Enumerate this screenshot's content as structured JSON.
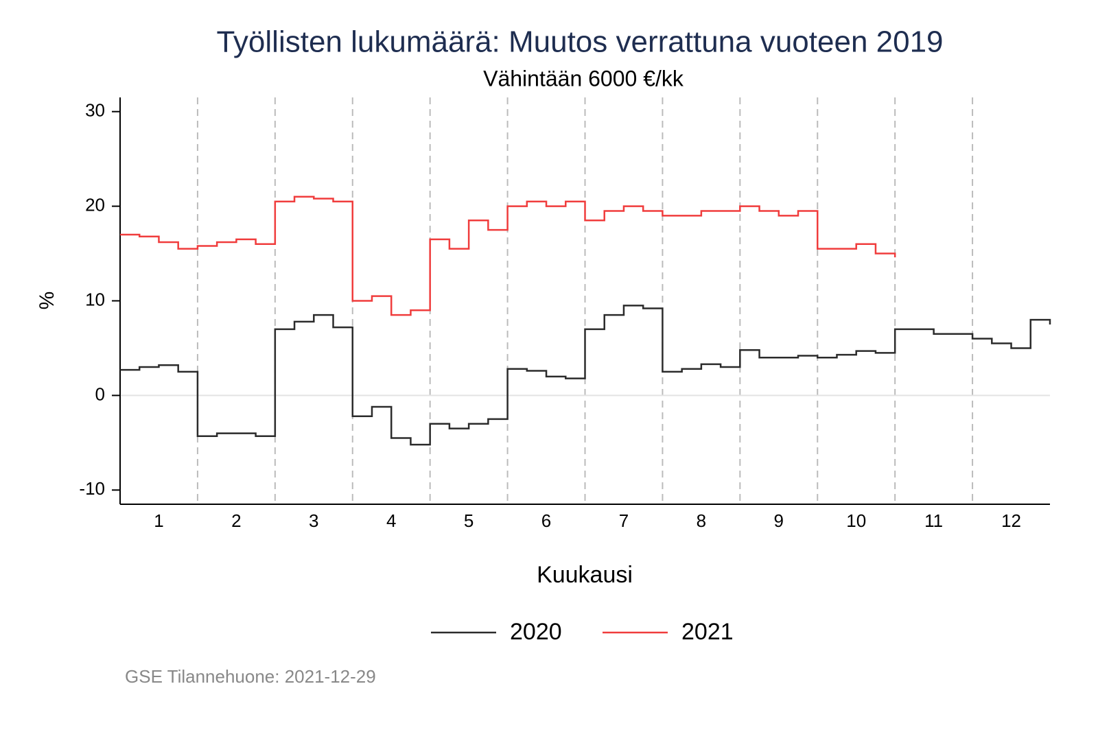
{
  "chart_data": {
    "type": "line",
    "step": true,
    "title": "Työllisten lukumäärä: Muutos verrattuna vuoteen 2019",
    "subtitle": "Vähintään 6000 €/kk",
    "x_label": "Kuukausi",
    "y_label": "%",
    "note": "GSE Tilannehuone: 2021-12-29",
    "x": [
      0.5,
      0.75,
      1,
      1.25,
      1.5,
      1.75,
      2,
      2.25,
      2.5,
      2.75,
      3,
      3.25,
      3.5,
      3.75,
      4,
      4.25,
      4.5,
      4.75,
      5,
      5.25,
      5.5,
      5.75,
      6,
      6.25,
      6.5,
      6.75,
      7,
      7.25,
      7.5,
      7.75,
      8,
      8.25,
      8.5,
      8.75,
      9,
      9.25,
      9.5,
      9.75,
      10,
      10.25,
      10.5,
      10.75,
      11,
      11.25,
      11.5,
      11.75,
      12,
      12.25,
      12.5
    ],
    "series": [
      {
        "name": "2020",
        "color": "#2b2b2b",
        "values": [
          2.7,
          3.0,
          3.2,
          2.5,
          -4.3,
          -4.0,
          -4.0,
          -4.3,
          7.0,
          7.8,
          8.5,
          7.2,
          -2.2,
          -1.2,
          -4.5,
          -5.2,
          -3.0,
          -3.5,
          -3.0,
          -2.5,
          2.8,
          2.6,
          2.0,
          1.8,
          7.0,
          8.5,
          9.5,
          9.2,
          2.5,
          2.8,
          3.3,
          3.0,
          4.8,
          4.0,
          4.0,
          4.2,
          4.0,
          4.3,
          4.7,
          4.5,
          7.0,
          7.0,
          6.5,
          6.5,
          6.0,
          5.5,
          5.0,
          8.0,
          7.5
        ]
      },
      {
        "name": "2021",
        "color": "#f03c3c",
        "values": [
          17.0,
          16.8,
          16.2,
          15.5,
          15.8,
          16.2,
          16.5,
          16.0,
          20.5,
          21.0,
          20.8,
          20.5,
          10.0,
          10.5,
          8.5,
          9.0,
          16.5,
          15.5,
          18.5,
          17.5,
          20.0,
          20.5,
          20.0,
          20.5,
          18.5,
          19.5,
          20.0,
          19.5,
          19.0,
          19.0,
          19.5,
          19.5,
          20.0,
          19.5,
          19.0,
          19.5,
          15.5,
          15.5,
          16.0,
          15.0,
          14.6,
          null,
          null,
          null,
          null,
          null,
          null,
          null,
          null
        ]
      }
    ],
    "xlim": [
      0.5,
      12.5
    ],
    "xticks": [
      1,
      2,
      3,
      4,
      5,
      6,
      7,
      8,
      9,
      10,
      11,
      12
    ],
    "ylim": [
      -11.5,
      31.5
    ],
    "yticks": [
      -10,
      0,
      10,
      20,
      30
    ]
  }
}
